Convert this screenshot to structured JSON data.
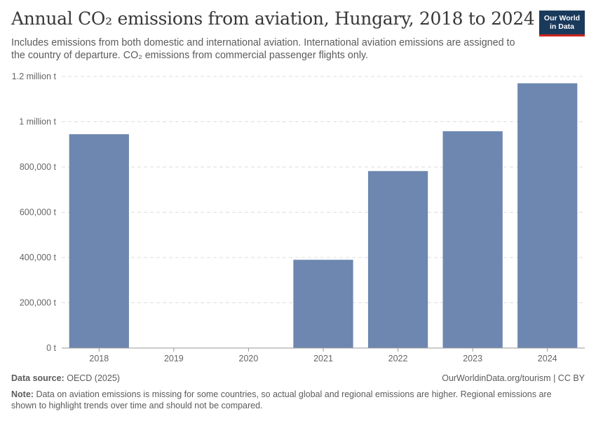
{
  "header": {
    "title": "Annual CO₂ emissions from aviation, Hungary, 2018 to 2024",
    "subtitle": "Includes emissions from both domestic and international aviation. International aviation emissions are assigned to the country of departure. CO₂ emissions from commercial passenger flights only."
  },
  "logo": {
    "line1": "Our World",
    "line2": "in Data"
  },
  "colors": {
    "bar": "#6d87b0",
    "grid": "#dddddd",
    "axis": "#999999",
    "logo_bg": "#1a3a5c",
    "logo_accent": "#ce261e"
  },
  "chart_data": {
    "type": "bar",
    "title": "Annual CO₂ emissions from aviation, Hungary, 2018 to 2024",
    "xlabel": "",
    "ylabel": "",
    "categories": [
      "2018",
      "2019",
      "2020",
      "2021",
      "2022",
      "2023",
      "2024"
    ],
    "values": [
      945000,
      null,
      null,
      390000,
      782000,
      958000,
      1170000
    ],
    "ylim": [
      0,
      1200000
    ],
    "yticks": [
      0,
      200000,
      400000,
      600000,
      800000,
      1000000,
      1200000
    ],
    "ytick_labels": [
      "0 t",
      "200,000 t",
      "400,000 t",
      "600,000 t",
      "800,000 t",
      "1 million t",
      "1.2 million t"
    ],
    "grid": true
  },
  "footer": {
    "source_label": "Data source:",
    "source_value": "OECD (2025)",
    "license": "OurWorldinData.org/tourism | CC BY",
    "note_label": "Note:",
    "note_text": "Data on aviation emissions is missing for some countries, so actual global and regional emissions are higher. Regional emissions are shown to highlight trends over time and should not be compared."
  }
}
